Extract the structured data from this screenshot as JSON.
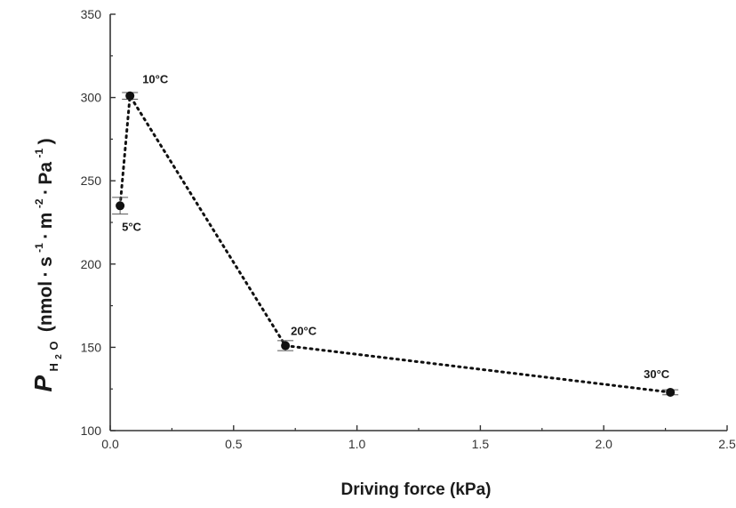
{
  "chart_data": {
    "type": "scatter",
    "title": "",
    "xlabel": "Driving force (kPa)",
    "ylabel": {
      "symbol": "P",
      "subscript_h": "H",
      "subscript_2": "2",
      "subscript_o": "O",
      "unit_open": "(nmol",
      "unit_dot1": "·",
      "unit_s": "s",
      "unit_exp1": "-1",
      "unit_dot2": "·",
      "unit_m": "m",
      "unit_exp2": "-2",
      "unit_dot3": "·",
      "unit_pa": "Pa",
      "unit_exp3": "-1",
      "unit_close": ")"
    },
    "xlim": [
      0,
      2.5
    ],
    "ylim": [
      100,
      350
    ],
    "xticks": [
      "0.0",
      "0.5",
      "1.0",
      "1.5",
      "2.0",
      "2.5"
    ],
    "yticks": [
      "100",
      "150",
      "200",
      "250",
      "300",
      "350"
    ],
    "grid": false,
    "series": [
      {
        "line_style": "dotted",
        "points": [
          {
            "label": "5°C",
            "x": 0.04,
            "y": 235,
            "err": 5
          },
          {
            "label": "10°C",
            "x": 0.08,
            "y": 301,
            "err": 2
          },
          {
            "label": "20°C",
            "x": 0.71,
            "y": 151,
            "err": 3
          },
          {
            "label": "30°C",
            "x": 2.27,
            "y": 123,
            "err": 1.5
          }
        ]
      }
    ],
    "colors": {
      "marker": "#111111",
      "line": "#111111",
      "axis": "#333333"
    }
  }
}
